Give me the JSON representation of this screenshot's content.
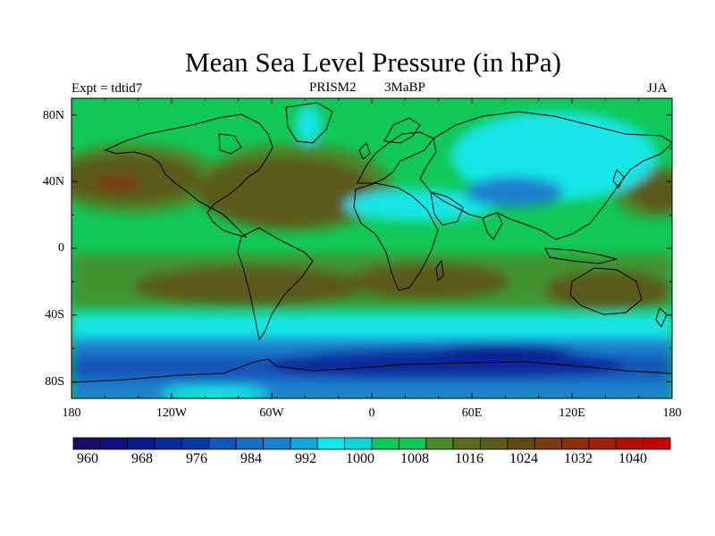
{
  "title": "Mean Sea Level Pressure (in hPa)",
  "subtitle_left": "Expt = tdtid7",
  "subtitle_center_a": "PRISM2",
  "subtitle_center_b": "3MaBP",
  "subtitle_right": "JJA",
  "y_ticks": [
    "80N",
    "40N",
    "0",
    "40S",
    "80S"
  ],
  "x_ticks": [
    "180",
    "120W",
    "60W",
    "0",
    "60E",
    "120E",
    "180"
  ],
  "colorbar": {
    "labels": [
      "960",
      "968",
      "976",
      "984",
      "992",
      "1000",
      "1008",
      "1016",
      "1024",
      "1032",
      "1040"
    ],
    "colors": [
      "#1f0a66",
      "#10107a",
      "#0a1a8c",
      "#0a2a9c",
      "#0a3aa8",
      "#1456b8",
      "#1a6cc4",
      "#1a80ce",
      "#12a6d8",
      "#12e6e6",
      "#0ad8d8",
      "#10c858",
      "#10c858",
      "#4a8a2a",
      "#5a6a1e",
      "#5a5a1a",
      "#604a14",
      "#7a3c12",
      "#8a2e10",
      "#a01e0c",
      "#b00e08",
      "#c40004"
    ]
  },
  "map": {
    "lat_range": [
      -90,
      90
    ],
    "lon_range": [
      -180,
      180
    ],
    "colors": {
      "ocean_band": "#10c858",
      "high": "#5a5a1a",
      "high_core": "#7a3c12",
      "low_cyan": "#12e6e6",
      "low_blue": "#1a6cc4",
      "low_dark": "#0a1a8c",
      "low_mid": "#1456b8",
      "mid_green": "#4a8a2a"
    }
  }
}
